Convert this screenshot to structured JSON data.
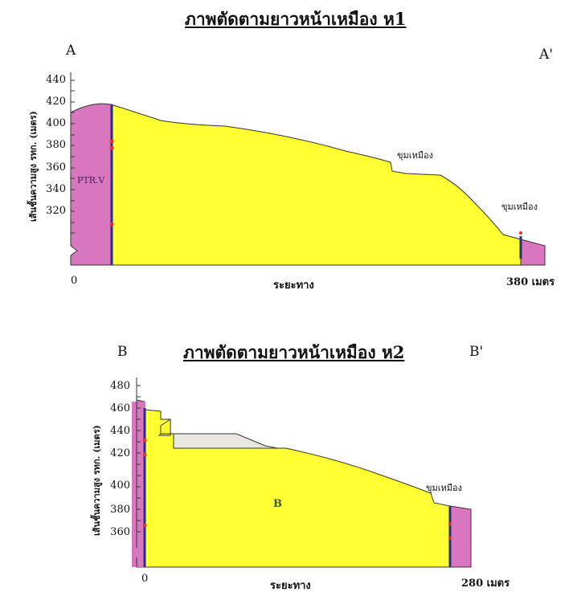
{
  "profile1": {
    "title": "ภาพตัดตามยาวหน้าเหมือง ห1",
    "start_label": "A",
    "end_label": "A'",
    "y_axis_label": "เส้นชั้นความสูง รทก. (เมตร)",
    "x_axis_label": "ระยะทาง",
    "x_start": "0",
    "x_end": "380 เมตร",
    "y_ticks": [
      "440",
      "420",
      "400",
      "380",
      "360",
      "340",
      "320"
    ],
    "annotations": [
      "PTR.V",
      "ขุมเหมือง",
      "ขุมเหมือง"
    ],
    "colors": {
      "fill": "#ffff33",
      "boundary": "#d877c0",
      "line": "#2a2e88"
    }
  },
  "profile2": {
    "title": "ภาพตัดตามยาวหน้าเหมือง ห2",
    "start_label": "B",
    "end_label": "B'",
    "y_axis_label": "เส้นชั้นความสูง รทก. (เมตร)",
    "x_axis_label": "ระยะทาง",
    "x_start": "0",
    "x_end": "280 เมตร",
    "y_ticks": [
      "480",
      "460",
      "440",
      "420",
      "400",
      "380",
      "360"
    ],
    "annotations": [
      "ขุมเหมือง",
      "B"
    ],
    "colors": {
      "fill": "#ffff33",
      "boundary": "#d877c0",
      "line": "#2a2e88",
      "bench": "#e8e8e0"
    }
  }
}
